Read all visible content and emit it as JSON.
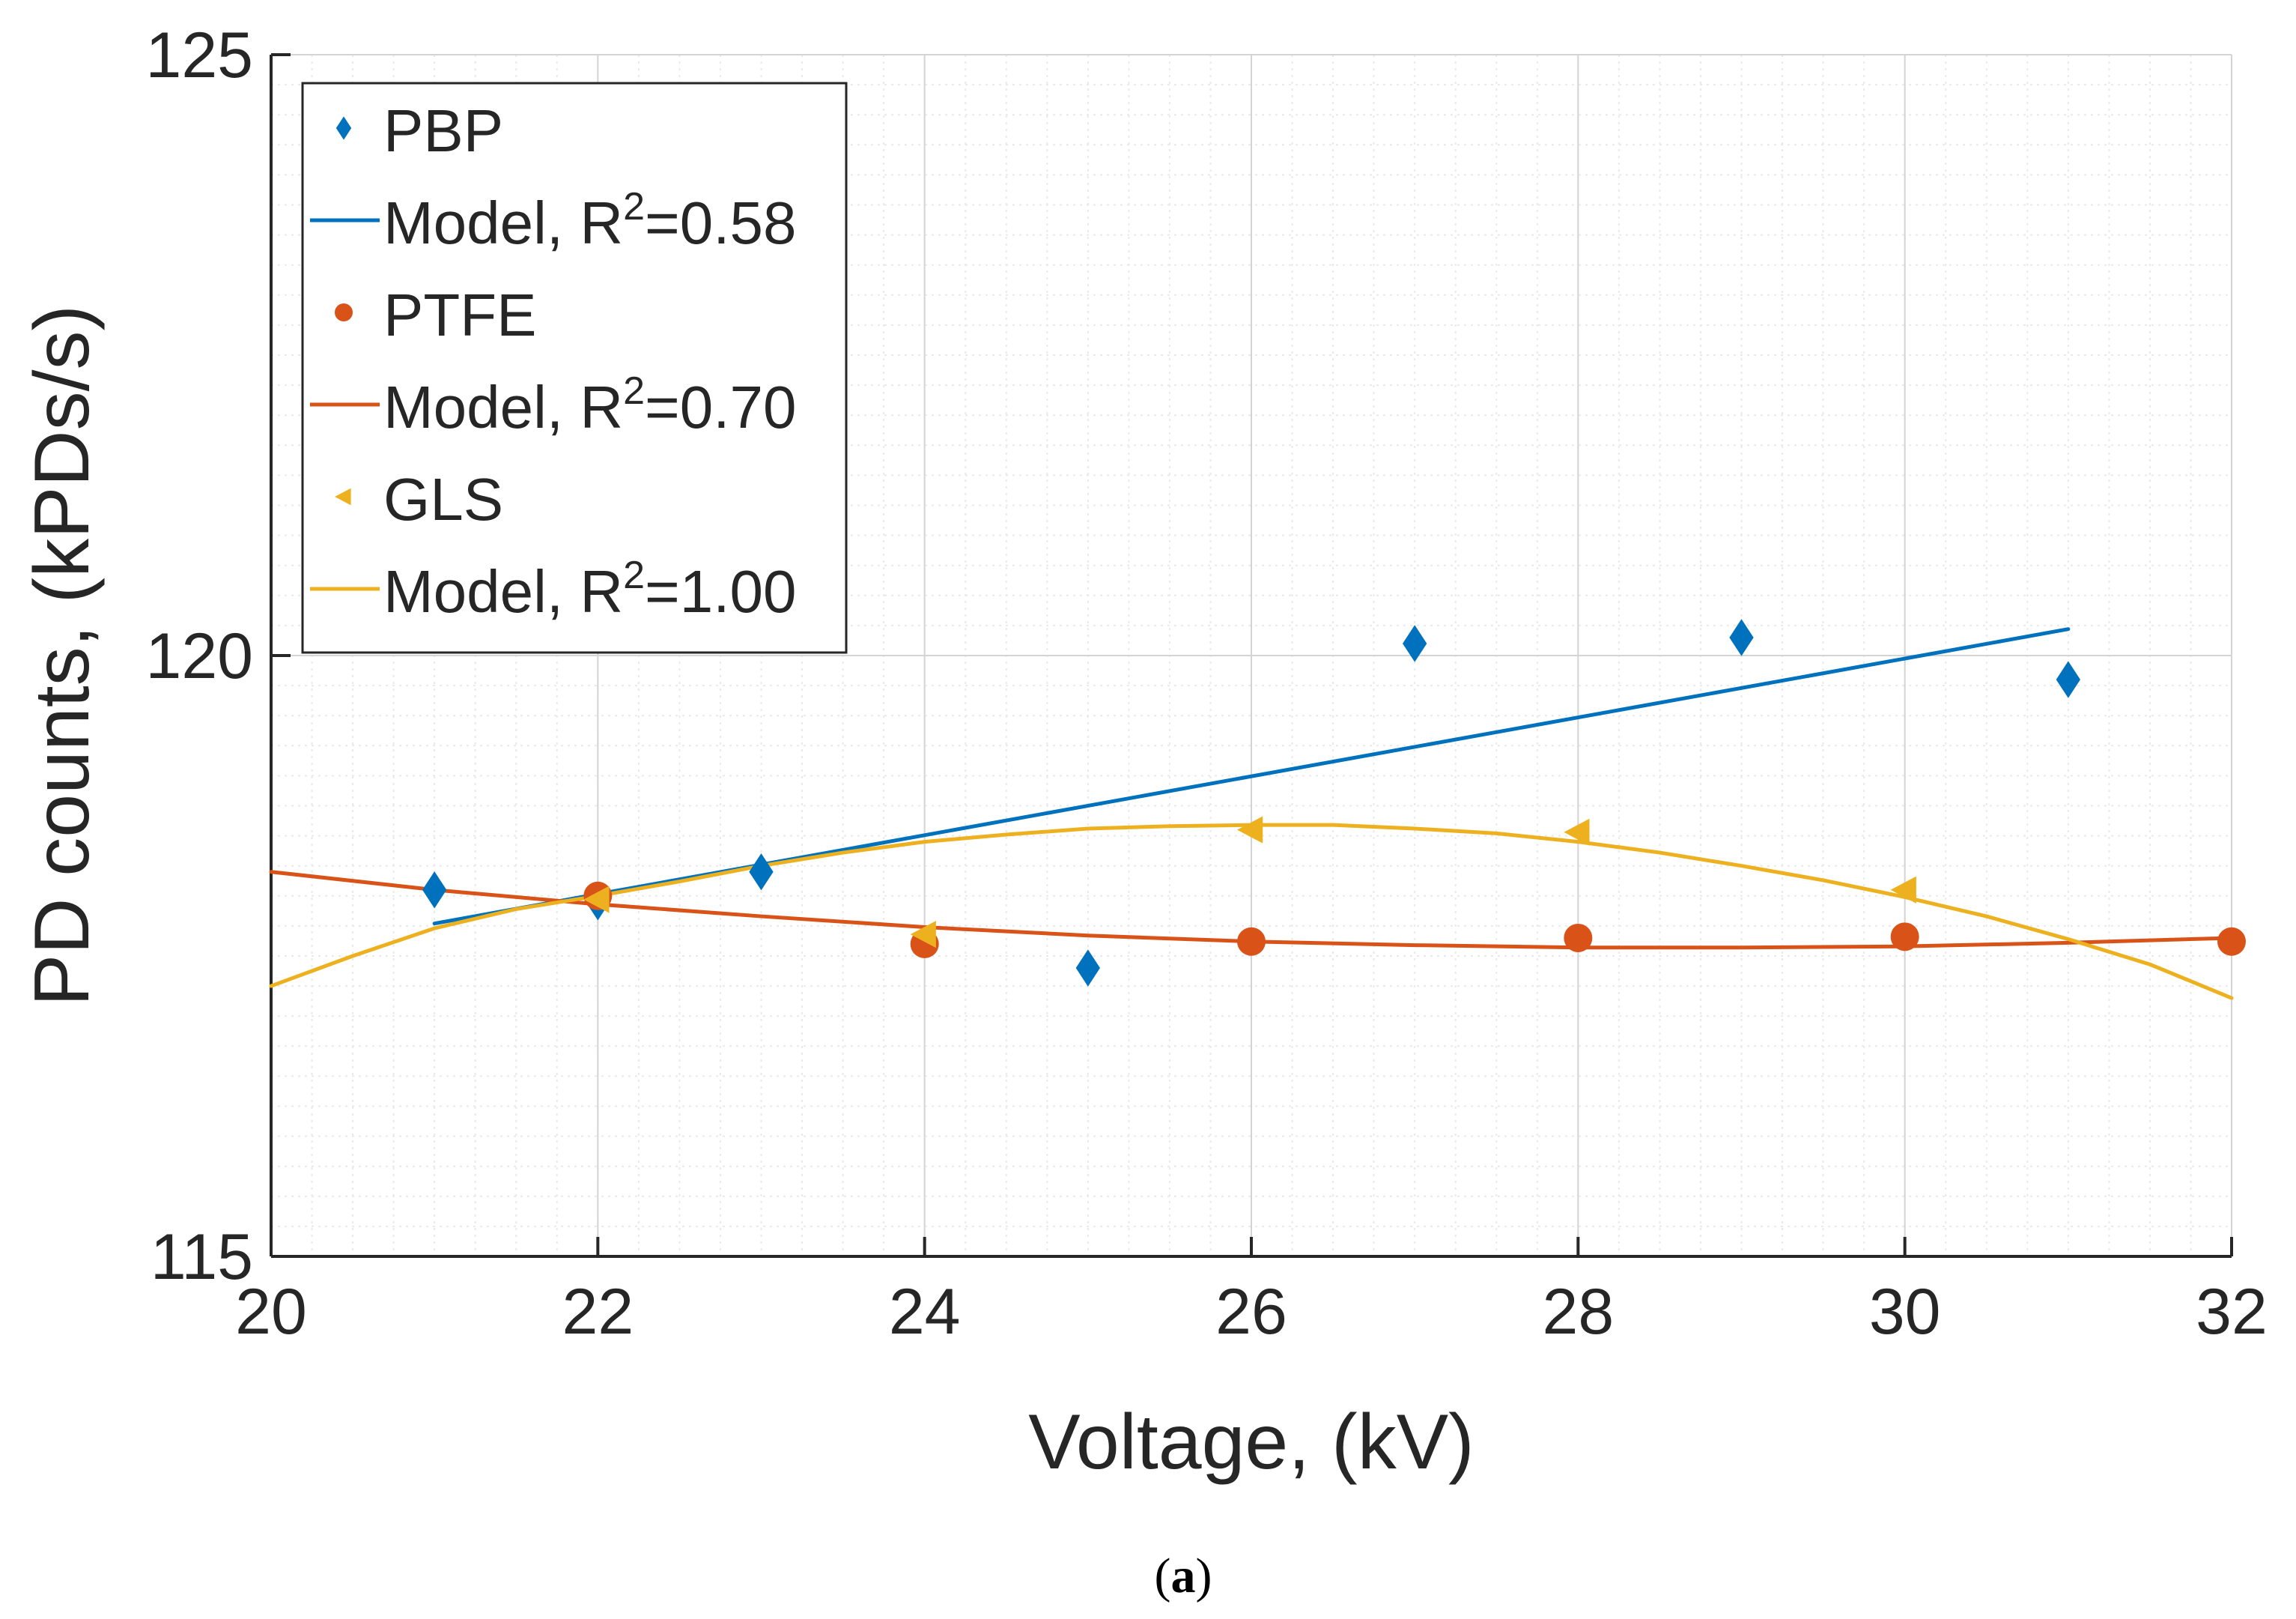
{
  "chart_data": {
    "type": "scatter",
    "xlabel": "Voltage, (kV)",
    "ylabel": "PD counts, (kPDs/s)",
    "xlim": [
      20,
      32
    ],
    "ylim": [
      115,
      125
    ],
    "xticks": [
      20,
      22,
      24,
      26,
      28,
      30,
      32
    ],
    "yticks": [
      115,
      120,
      125
    ],
    "grid": true,
    "minor_grid": true,
    "legend_position": "top-left",
    "caption": {
      "open": "(",
      "letter": "a",
      "close": ")"
    },
    "series": [
      {
        "name": "PBP",
        "kind": "markers",
        "marker": "diamond",
        "color": "#0072BD",
        "x": [
          21,
          22,
          23,
          25,
          27,
          29,
          31
        ],
        "y": [
          118.05,
          117.95,
          118.2,
          117.4,
          120.1,
          120.15,
          119.8
        ]
      },
      {
        "name": "Model, R",
        "sup": "2",
        "suffix": "=0.58",
        "kind": "line",
        "color": "#0072BD",
        "x": [
          21,
          31
        ],
        "y": [
          117.77,
          120.22
        ]
      },
      {
        "name": "PTFE",
        "kind": "markers",
        "marker": "circle",
        "color": "#D95319",
        "x": [
          22,
          24,
          26,
          28,
          30,
          32
        ],
        "y": [
          118.0,
          117.6,
          117.62,
          117.65,
          117.66,
          117.62
        ]
      },
      {
        "name": "Model, R",
        "sup": "2",
        "suffix": "=0.70",
        "kind": "line",
        "color": "#D95319",
        "x": [
          20,
          21,
          22,
          23,
          24,
          25,
          26,
          27,
          28,
          29,
          30,
          31,
          32
        ],
        "y": [
          118.2,
          118.05,
          117.93,
          117.83,
          117.74,
          117.67,
          117.62,
          117.59,
          117.57,
          117.57,
          117.58,
          117.61,
          117.65
        ]
      },
      {
        "name": "GLS",
        "kind": "markers",
        "marker": "triangle-left",
        "color": "#EDB120",
        "x": [
          22,
          24,
          26,
          28,
          30
        ],
        "y": [
          117.97,
          117.68,
          118.55,
          118.53,
          118.05
        ]
      },
      {
        "name": "Model, R",
        "sup": "2",
        "suffix": "=1.00",
        "kind": "line",
        "color": "#EDB120",
        "x": [
          20,
          20.5,
          21,
          21.5,
          22,
          22.5,
          23,
          23.5,
          24,
          24.5,
          25,
          25.5,
          26,
          26.5,
          27,
          27.5,
          28,
          28.5,
          29,
          29.5,
          30,
          30.5,
          31,
          31.5,
          32
        ],
        "y": [
          117.25,
          117.5,
          117.73,
          117.89,
          118.0,
          118.12,
          118.25,
          118.36,
          118.45,
          118.51,
          118.56,
          118.58,
          118.59,
          118.59,
          118.56,
          118.52,
          118.45,
          118.36,
          118.25,
          118.13,
          117.99,
          117.83,
          117.64,
          117.43,
          117.15
        ]
      }
    ]
  }
}
